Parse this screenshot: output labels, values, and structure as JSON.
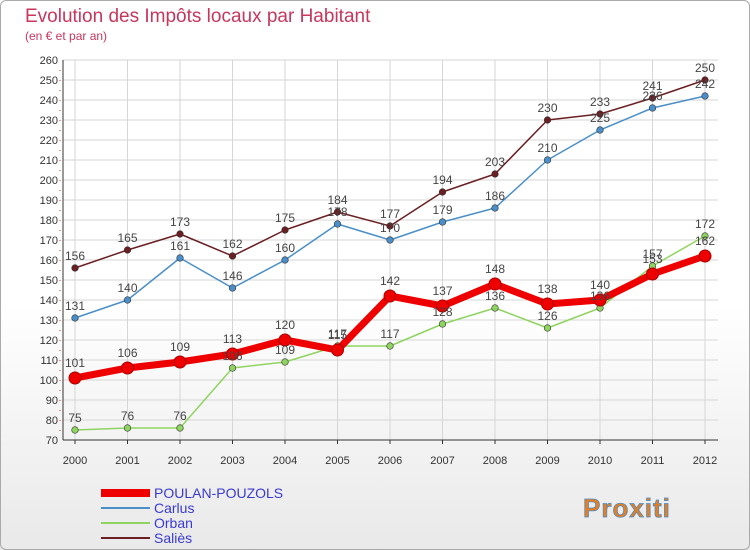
{
  "chart_data": {
    "type": "line",
    "title": "Evolution des Impôts locaux par Habitant",
    "subtitle": "(en € et par an)",
    "xlabel": "",
    "ylabel": "",
    "ylim": [
      70,
      260
    ],
    "yticks": [
      70,
      80,
      90,
      100,
      110,
      120,
      130,
      140,
      150,
      160,
      170,
      180,
      190,
      200,
      210,
      220,
      230,
      240,
      250,
      260
    ],
    "x": [
      "2000",
      "2001",
      "2002",
      "2003",
      "2004",
      "2005",
      "2006",
      "2007",
      "2008",
      "2009",
      "2010",
      "2011",
      "2012"
    ],
    "grid": true,
    "legend": "bottom-left",
    "series": [
      {
        "name": "Saliès",
        "color": "#6b1f22",
        "values": [
          156,
          165,
          173,
          162,
          175,
          184,
          177,
          194,
          203,
          230,
          233,
          241,
          250
        ]
      },
      {
        "name": "Carlus",
        "color": "#4a8fc9",
        "values": [
          131,
          140,
          161,
          146,
          160,
          178,
          170,
          179,
          186,
          210,
          225,
          236,
          242
        ]
      },
      {
        "name": "Orban",
        "color": "#8fd460",
        "values": [
          75,
          76,
          76,
          106,
          109,
          117,
          117,
          128,
          136,
          126,
          136,
          157,
          172
        ]
      },
      {
        "name": "POULAN-POUZOLS",
        "color": "#ee0000",
        "values": [
          101,
          106,
          109,
          113,
          120,
          115,
          142,
          137,
          148,
          138,
          140,
          153,
          162
        ]
      }
    ]
  },
  "legend_items": [
    "POULAN-POUZOLS",
    "Carlus",
    "Orban",
    "Saliès"
  ],
  "logo": {
    "text": "Proxiti"
  },
  "colors": {
    "title": "#c8365c",
    "legend_text": "#3a3ad0",
    "grid": "#d6d6d6"
  }
}
